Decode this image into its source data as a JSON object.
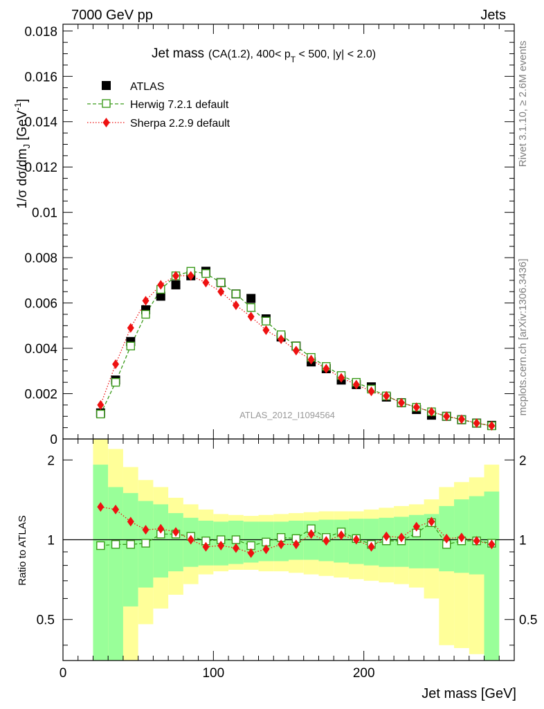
{
  "header": {
    "left": "7000 GeV pp",
    "right": "Jets"
  },
  "plot_title": {
    "main": "Jet mass",
    "sub_part1": "(CA(1.2), 400< p",
    "sub_subscript": "T",
    "sub_part2": " < 500, |y| < 2.0)"
  },
  "axis": {
    "ylabel_main": "1/σ dσ/dm",
    "ylabel_sub": "J",
    "ylabel_unit": " [GeV",
    "ylabel_sup": "-1",
    "ylabel_close": "]",
    "xlabel": "Jet mass [GeV]",
    "ratio_ylabel": "Ratio to ATLAS",
    "main_yticks": [
      "0",
      "0.002",
      "0.004",
      "0.006",
      "0.008",
      "0.01",
      "0.012",
      "0.014",
      "0.016",
      "0.018"
    ],
    "ratio_yticks": [
      "0.5",
      "1",
      "2"
    ],
    "xticks": [
      "0",
      "100",
      "200"
    ]
  },
  "watermark": "ATLAS_2012_I1094564",
  "side_text": {
    "top": "Rivet 3.1.10, ≥ 2.6M events",
    "bottom": "mcplots.cern.ch [arXiv:1306.3436]"
  },
  "colors": {
    "atlas": "#000000",
    "herwig": "#3a9a1a",
    "sherpa": "#ee1111",
    "band_inner": "#99ff99",
    "band_outer": "#ffff99"
  },
  "chart_data": {
    "type": "scatter",
    "x": [
      25,
      35,
      45,
      55,
      65,
      75,
      85,
      95,
      105,
      115,
      125,
      135,
      145,
      155,
      165,
      175,
      185,
      195,
      205,
      215,
      225,
      235,
      245,
      255,
      265,
      275,
      285
    ],
    "xlim": [
      0,
      300
    ],
    "ylim": [
      0,
      0.0183
    ],
    "ratio_ylim": [
      0.35,
      2.4
    ],
    "ratio_scale": "log",
    "series": [
      {
        "name": "ATLAS",
        "marker": "square-filled",
        "values": [
          0.00115,
          0.0026,
          0.0043,
          0.0057,
          0.0063,
          0.0068,
          0.0072,
          0.0074,
          0.0069,
          0.0064,
          0.0062,
          0.0053,
          0.0045,
          0.0041,
          0.0034,
          0.0031,
          0.0026,
          0.0024,
          0.0023,
          0.00185,
          0.0016,
          0.0013,
          0.00105,
          0.001,
          0.00085,
          0.0007,
          0.0006
        ]
      },
      {
        "name": "Herwig 7.2.1 default",
        "marker": "square-open",
        "line": "dashed",
        "values": [
          0.0011,
          0.0025,
          0.0041,
          0.0055,
          0.0066,
          0.0072,
          0.0074,
          0.0073,
          0.0069,
          0.0064,
          0.0058,
          0.0052,
          0.0046,
          0.0041,
          0.0036,
          0.0032,
          0.0028,
          0.0025,
          0.0022,
          0.0019,
          0.0016,
          0.0014,
          0.0012,
          0.001,
          0.00085,
          0.0007,
          0.00058
        ]
      },
      {
        "name": "Sherpa 2.2.9 default",
        "marker": "diamond-filled",
        "line": "dotted",
        "values": [
          0.0015,
          0.0033,
          0.0049,
          0.0061,
          0.0068,
          0.0072,
          0.0072,
          0.0069,
          0.0065,
          0.0059,
          0.0054,
          0.0048,
          0.0044,
          0.0039,
          0.0035,
          0.0031,
          0.0027,
          0.0024,
          0.0021,
          0.0019,
          0.0016,
          0.0014,
          0.0012,
          0.001,
          0.00087,
          0.0007,
          0.00058
        ]
      }
    ],
    "ratio": {
      "herwig": [
        0.95,
        0.96,
        0.96,
        0.97,
        1.05,
        1.05,
        1.03,
        0.99,
        1.0,
        1.0,
        0.95,
        0.98,
        1.02,
        1.01,
        1.1,
        1.02,
        1.07,
        1.01,
        0.96,
        0.99,
        0.99,
        1.06,
        1.16,
        0.96,
        0.99,
        0.99,
        0.97
      ],
      "sherpa": [
        1.33,
        1.3,
        1.17,
        1.09,
        1.1,
        1.07,
        1.0,
        0.94,
        0.95,
        0.93,
        0.89,
        0.92,
        0.96,
        0.96,
        1.05,
        0.99,
        1.04,
        1.0,
        0.94,
        1.03,
        1.02,
        1.12,
        1.17,
        1.01,
        1.02,
        0.99,
        0.96
      ],
      "band_inner": [
        [
          0.3,
          1.92
        ],
        [
          0.3,
          1.58
        ],
        [
          0.56,
          1.5
        ],
        [
          0.66,
          1.4
        ],
        [
          0.72,
          1.36
        ],
        [
          0.76,
          1.26
        ],
        [
          0.79,
          1.21
        ],
        [
          0.8,
          1.18
        ],
        [
          0.8,
          1.17
        ],
        [
          0.81,
          1.18
        ],
        [
          0.82,
          1.17
        ],
        [
          0.83,
          1.17
        ],
        [
          0.83,
          1.17
        ],
        [
          0.84,
          1.18
        ],
        [
          0.84,
          1.18
        ],
        [
          0.83,
          1.19
        ],
        [
          0.82,
          1.19
        ],
        [
          0.81,
          1.2
        ],
        [
          0.8,
          1.2
        ],
        [
          0.79,
          1.21
        ],
        [
          0.79,
          1.22
        ],
        [
          0.78,
          1.24
        ],
        [
          0.78,
          1.25
        ],
        [
          0.76,
          1.34
        ],
        [
          0.75,
          1.42
        ],
        [
          0.74,
          1.46
        ],
        [
          0.3,
          1.52
        ]
      ],
      "band_outer": [
        [
          0.3,
          2.5
        ],
        [
          0.3,
          2.2
        ],
        [
          0.3,
          1.88
        ],
        [
          0.48,
          1.68
        ],
        [
          0.55,
          1.58
        ],
        [
          0.62,
          1.44
        ],
        [
          0.68,
          1.36
        ],
        [
          0.74,
          1.3
        ],
        [
          0.76,
          1.25
        ],
        [
          0.77,
          1.24
        ],
        [
          0.77,
          1.23
        ],
        [
          0.76,
          1.24
        ],
        [
          0.76,
          1.25
        ],
        [
          0.75,
          1.26
        ],
        [
          0.74,
          1.27
        ],
        [
          0.73,
          1.28
        ],
        [
          0.72,
          1.28
        ],
        [
          0.71,
          1.28
        ],
        [
          0.7,
          1.3
        ],
        [
          0.69,
          1.32
        ],
        [
          0.68,
          1.34
        ],
        [
          0.66,
          1.36
        ],
        [
          0.6,
          1.42
        ],
        [
          0.4,
          1.58
        ],
        [
          0.39,
          1.65
        ],
        [
          0.37,
          1.72
        ],
        [
          0.3,
          1.92
        ]
      ]
    }
  }
}
